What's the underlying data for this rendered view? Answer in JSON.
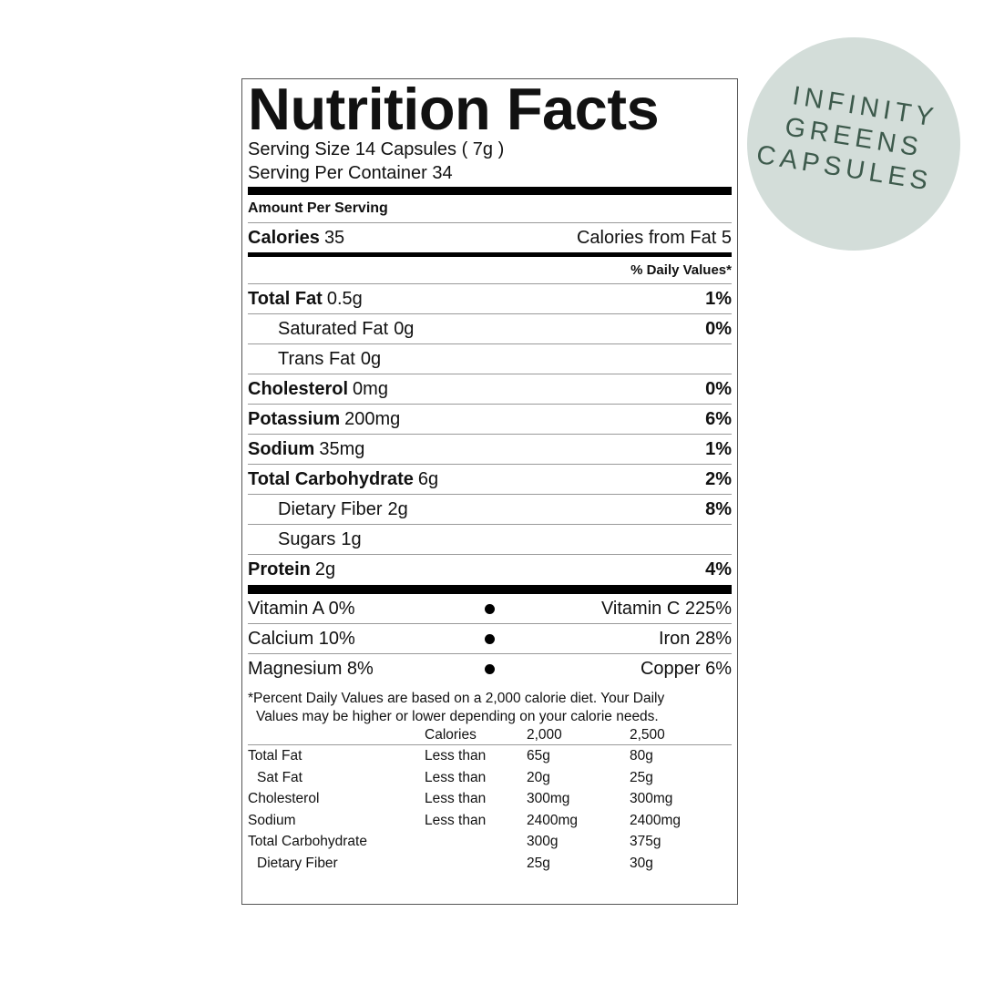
{
  "badge": {
    "lines": [
      "INFINITY",
      "GREENS",
      "CAPSULES"
    ]
  },
  "label": {
    "title": "Nutrition Facts",
    "serving_size": "Serving Size 14 Capsules ( 7g )",
    "servings": "Serving Per Container 34",
    "amount_per_serving": "Amount Per Serving",
    "calories": {
      "name": "Calories",
      "amount": "35",
      "from_fat": "Calories from Fat 5"
    },
    "dv_header": "% Daily Values*",
    "nutrients": [
      {
        "name": "Total Fat",
        "amount": "0.5g",
        "dv": "1%",
        "indent": false
      },
      {
        "name": "Saturated Fat",
        "amount": "0g",
        "dv": "0%",
        "indent": true
      },
      {
        "name": "Trans Fat",
        "amount": "0g",
        "indent": true
      },
      {
        "name": "Cholesterol",
        "amount": "0mg",
        "dv": "0%",
        "indent": false
      },
      {
        "name": "Potassium",
        "amount": "200mg",
        "dv": "6%",
        "indent": false
      },
      {
        "name": "Sodium",
        "amount": "35mg",
        "dv": "1%",
        "indent": false
      },
      {
        "name": "Total Carbohydrate",
        "amount": "6g",
        "dv": "2%",
        "indent": false
      },
      {
        "name": "Dietary Fiber",
        "amount": "2g",
        "dv": "8%",
        "indent": true
      },
      {
        "name": "Sugars",
        "amount": "1g",
        "indent": true
      },
      {
        "name": "Protein",
        "amount": "2g",
        "dv": "4%",
        "indent": false
      }
    ],
    "vitamins": [
      [
        "Vitamin A 0%",
        "Vitamin C 225%"
      ],
      [
        "Calcium 10%",
        "Iron 28%"
      ],
      [
        "Magnesium 8%",
        "Copper 6%"
      ]
    ],
    "footnote": [
      "*Percent Daily Values are based on a 2,000 calorie diet. Your Daily",
      "Values may be higher or lower depending on your calorie needs."
    ],
    "table": {
      "header": [
        "Calories",
        "2,000",
        "2,500"
      ],
      "rows": [
        {
          "name": "Total Fat",
          "qualifier": "Less than",
          "low": "65g",
          "high": "80g",
          "indent": false
        },
        {
          "name": "Sat Fat",
          "qualifier": "Less than",
          "low": "20g",
          "high": "25g",
          "indent": true
        },
        {
          "name": "Cholesterol",
          "qualifier": "Less than",
          "low": "300mg",
          "high": "300mg",
          "indent": false
        },
        {
          "name": "Sodium",
          "qualifier": "Less than",
          "low": "2400mg",
          "high": "2400mg",
          "indent": false
        },
        {
          "name": "Total Carbohydrate",
          "low": "300g",
          "high": "375g",
          "indent": false
        },
        {
          "name": "Dietary Fiber",
          "low": "25g",
          "high": "30g",
          "indent": true
        }
      ]
    }
  }
}
